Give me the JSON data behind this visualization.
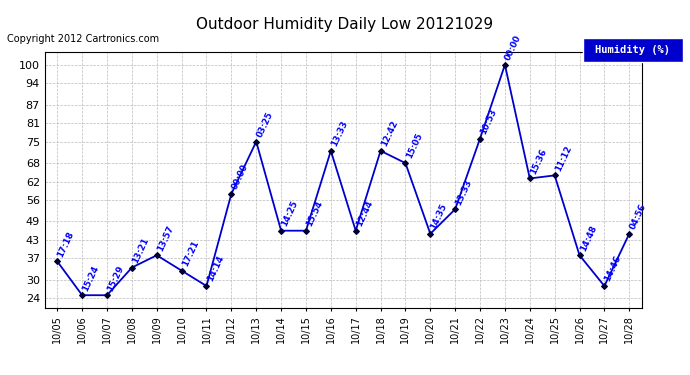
{
  "title": "Outdoor Humidity Daily Low 20121029",
  "copyright": "Copyright 2012 Cartronics.com",
  "legend_label": "Humidity (%)",
  "x_labels": [
    "10/05",
    "10/06",
    "10/07",
    "10/08",
    "10/09",
    "10/10",
    "10/11",
    "10/12",
    "10/13",
    "10/14",
    "10/15",
    "10/16",
    "10/17",
    "10/18",
    "10/19",
    "10/20",
    "10/21",
    "10/22",
    "10/23",
    "10/24",
    "10/25",
    "10/26",
    "10/27",
    "10/28"
  ],
  "x_indices": [
    0,
    1,
    2,
    3,
    4,
    5,
    6,
    7,
    8,
    9,
    10,
    11,
    12,
    13,
    14,
    15,
    16,
    17,
    18,
    19,
    20,
    21,
    22,
    23
  ],
  "y_values": [
    36,
    25,
    25,
    34,
    38,
    33,
    28,
    58,
    75,
    46,
    46,
    72,
    46,
    72,
    68,
    45,
    53,
    76,
    100,
    63,
    64,
    38,
    28,
    45
  ],
  "point_labels": [
    "17:18",
    "15:24",
    "15:29",
    "13:21",
    "13:57",
    "17:21",
    "14:14",
    "00:00",
    "03:25",
    "14:25",
    "15:54",
    "13:33",
    "12:44",
    "12:42",
    "15:05",
    "14:35",
    "13:33",
    "10:53",
    "00:00",
    "15:36",
    "11:12",
    "14:48",
    "14:46",
    "04:56"
  ],
  "ylim": [
    21,
    104
  ],
  "yticks": [
    24,
    30,
    37,
    43,
    49,
    56,
    62,
    68,
    75,
    81,
    87,
    94,
    100
  ],
  "line_color": "#0000cc",
  "marker_color": "#000033",
  "label_color": "#0000ff",
  "grid_color": "#bbbbbb",
  "background_color": "#ffffff",
  "legend_bg": "#0000cc",
  "legend_text_color": "#ffffff",
  "title_color": "#000000",
  "copyright_color": "#000000",
  "border_color": "#000000"
}
